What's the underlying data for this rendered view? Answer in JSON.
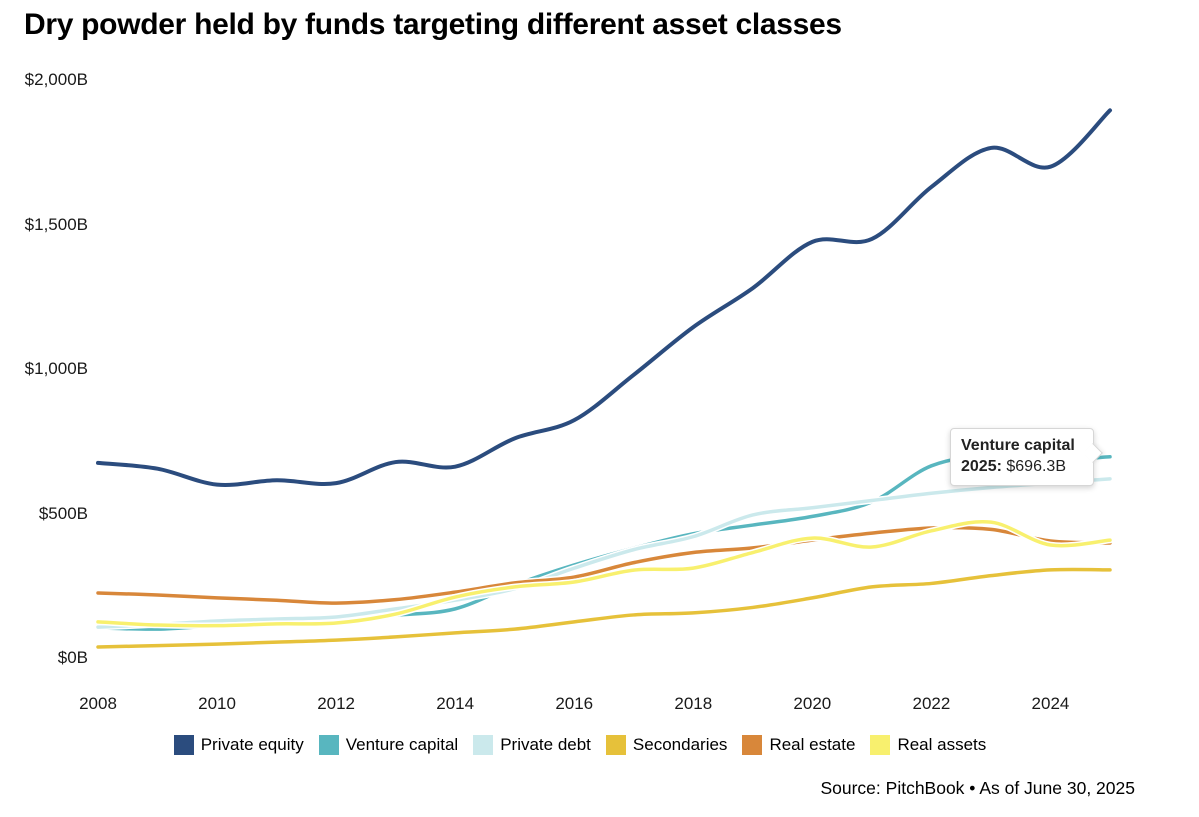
{
  "title": "Dry powder held by funds targeting different asset classes",
  "y_axis": {
    "ticks": [
      {
        "label": "$2,000B",
        "value": 2000
      },
      {
        "label": "$1,500B",
        "value": 1500
      },
      {
        "label": "$1,000B",
        "value": 1000
      },
      {
        "label": "$500B",
        "value": 500
      },
      {
        "label": "$0B",
        "value": 0
      }
    ]
  },
  "x_axis": {
    "ticks": [
      {
        "label": "2008",
        "value": 2008
      },
      {
        "label": "2010",
        "value": 2010
      },
      {
        "label": "2012",
        "value": 2012
      },
      {
        "label": "2014",
        "value": 2014
      },
      {
        "label": "2016",
        "value": 2016
      },
      {
        "label": "2018",
        "value": 2018
      },
      {
        "label": "2020",
        "value": 2020
      },
      {
        "label": "2022",
        "value": 2022
      },
      {
        "label": "2024",
        "value": 2024
      }
    ]
  },
  "legend": [
    {
      "label": "Private equity",
      "color": "#2b4c7e"
    },
    {
      "label": "Venture capital",
      "color": "#58b6bf"
    },
    {
      "label": "Private debt",
      "color": "#cbe9ec"
    },
    {
      "label": "Secondaries",
      "color": "#e6c13a"
    },
    {
      "label": "Real estate",
      "color": "#d8873a"
    },
    {
      "label": "Real assets",
      "color": "#f8f06e"
    }
  ],
  "tooltip": {
    "series": "Venture capital",
    "year_label": "2025:",
    "value": "$696.3B"
  },
  "source": "Source: PitchBook • As of June 30, 2025",
  "chart_data": {
    "type": "line",
    "title": "Dry powder held by funds targeting different asset classes",
    "x": [
      2008,
      2009,
      2010,
      2011,
      2012,
      2013,
      2014,
      2015,
      2016,
      2017,
      2018,
      2019,
      2020,
      2021,
      2022,
      2023,
      2024,
      2025
    ],
    "series": [
      {
        "name": "Private equity",
        "color": "#2b4c7e",
        "stroke_width": 4,
        "values": [
          675,
          655,
          600,
          615,
          605,
          678,
          662,
          760,
          823,
          980,
          1145,
          1280,
          1440,
          1450,
          1630,
          1765,
          1700,
          1895
        ]
      },
      {
        "name": "Venture capital",
        "color": "#58b6bf",
        "stroke_width": 3.5,
        "values": [
          104,
          100,
          112,
          122,
          132,
          148,
          170,
          253,
          322,
          380,
          430,
          460,
          490,
          540,
          665,
          700,
          685,
          696.3
        ]
      },
      {
        "name": "Private debt",
        "color": "#cbe9ec",
        "stroke_width": 3.5,
        "values": [
          107,
          116,
          128,
          135,
          142,
          170,
          200,
          240,
          311,
          375,
          420,
          495,
          520,
          545,
          570,
          590,
          605,
          620
        ]
      },
      {
        "name": "Secondaries",
        "color": "#e6c13a",
        "stroke_width": 3.5,
        "values": [
          38,
          43,
          48,
          55,
          62,
          73,
          87,
          100,
          125,
          149,
          156,
          175,
          208,
          246,
          258,
          285,
          305,
          305
        ]
      },
      {
        "name": "Real estate",
        "color": "#d8873a",
        "stroke_width": 3.5,
        "values": [
          225,
          218,
          208,
          200,
          190,
          202,
          228,
          260,
          280,
          330,
          365,
          381,
          408,
          432,
          450,
          445,
          405,
          398
        ]
      },
      {
        "name": "Real assets",
        "color": "#f8f06e",
        "stroke_width": 3.5,
        "values": [
          125,
          114,
          112,
          118,
          121,
          152,
          211,
          246,
          263,
          304,
          311,
          365,
          415,
          384,
          440,
          470,
          391,
          408
        ]
      }
    ],
    "ylim": [
      0,
      2000
    ],
    "xlim": [
      2008,
      2025
    ],
    "y_unit": "$B",
    "grid": false,
    "legend_position": "bottom",
    "annotation": {
      "series": "Venture capital",
      "year": 2025,
      "value": 696.3
    }
  }
}
